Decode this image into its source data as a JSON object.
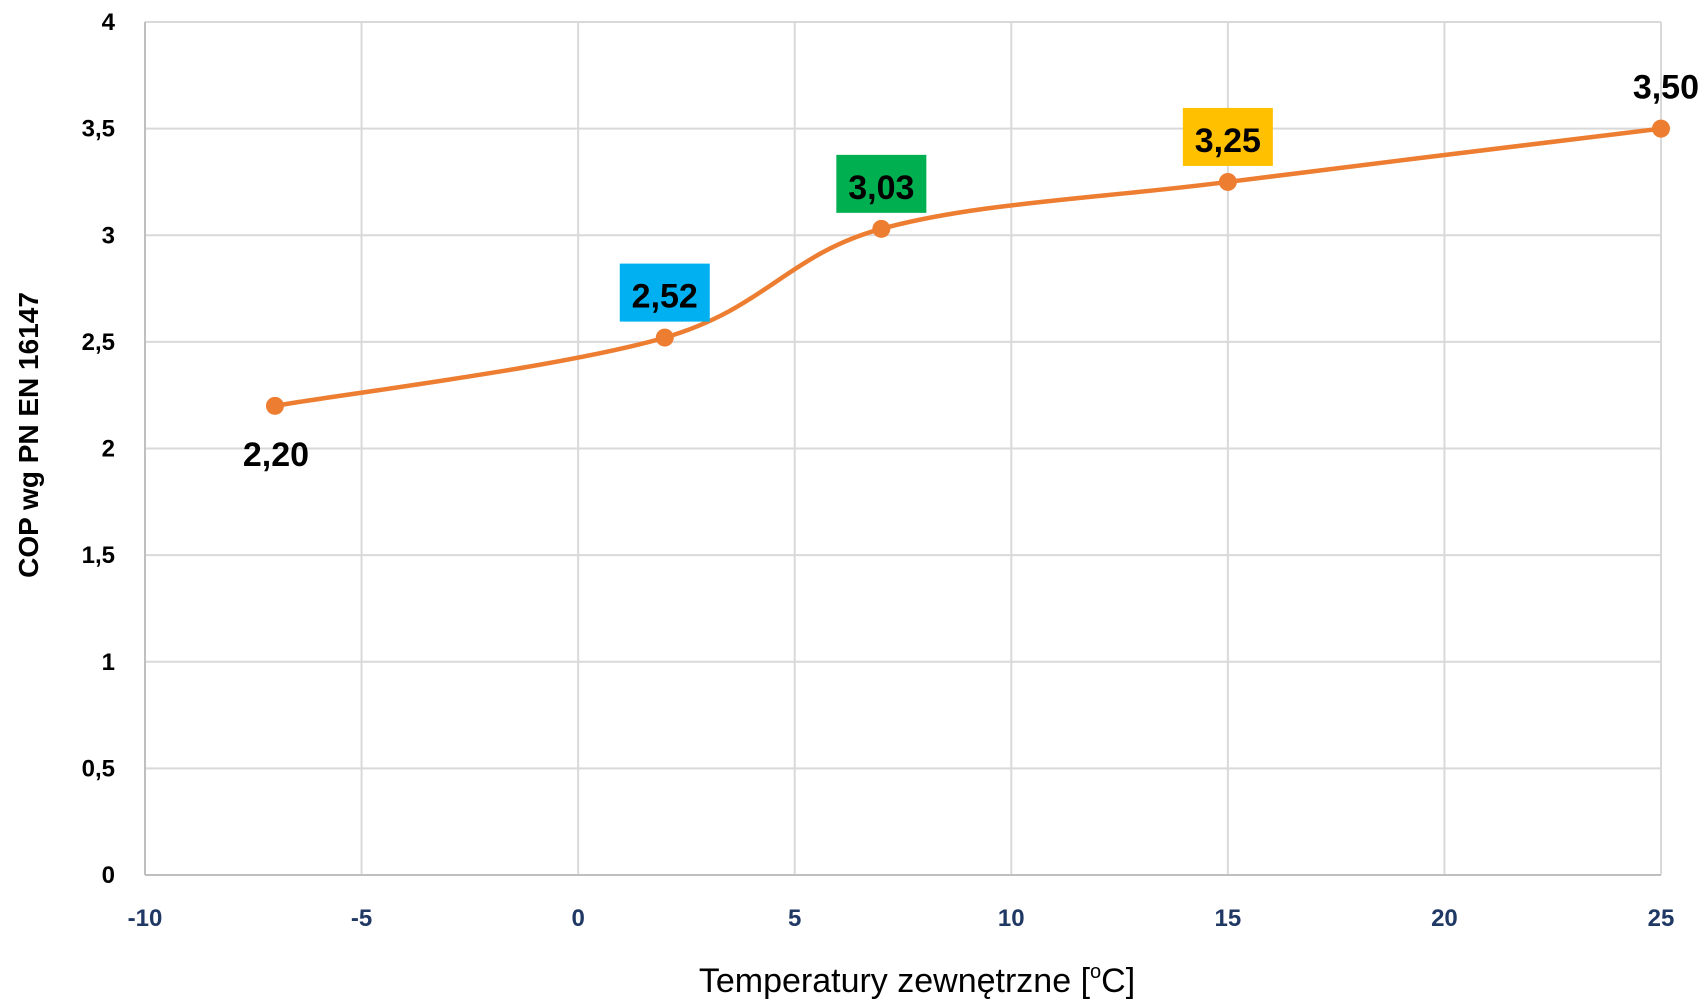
{
  "chart_data": {
    "type": "line",
    "xlabel": "Temperatury zewnętrzne [",
    "xlabel_unit_sup": "o",
    "xlabel_unit_end": "C]",
    "ylabel": "COP wg PN EN 16147",
    "xlim": [
      -10,
      25
    ],
    "ylim": [
      0,
      4
    ],
    "x_ticks": [
      -10,
      -5,
      0,
      5,
      10,
      15,
      20,
      25
    ],
    "x_tick_labels": [
      "-10",
      "-5",
      "0",
      "5",
      "10",
      "15",
      "20",
      "25"
    ],
    "y_ticks": [
      0,
      0.5,
      1,
      1.5,
      2,
      2.5,
      3,
      3.5,
      4
    ],
    "y_tick_labels": [
      "0",
      "0,5",
      "1",
      "1,5",
      "2",
      "2,5",
      "3",
      "3,5",
      "4"
    ],
    "grid": true,
    "smooth": true,
    "series": [
      {
        "x": [
          -7,
          2,
          7,
          15,
          25
        ],
        "values": [
          2.2,
          2.52,
          3.03,
          3.25,
          3.5
        ],
        "labels": [
          "2,20",
          "2,52",
          "3,03",
          "3,25",
          "3,50"
        ],
        "label_backgrounds": [
          "",
          "#00b0f0",
          "#00b050",
          "#ffc000",
          ""
        ],
        "color": "#ed7d31"
      }
    ],
    "colors": {
      "grid": "#d9d9d9",
      "axis": "#bfbfbf",
      "x_tick_text": "#1f3864",
      "y_tick_text": "#000000"
    }
  }
}
